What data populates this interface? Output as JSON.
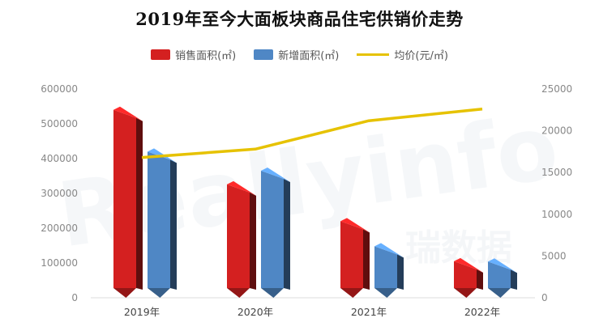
{
  "chart_data": {
    "type": "bar",
    "title": "2019年至今大面板块商品住宅供销价走势",
    "categories": [
      "2019年",
      "2020年",
      "2021年",
      "2022年"
    ],
    "series": [
      {
        "name": "销售面积(㎡)",
        "axis": "left",
        "color": "#d42020",
        "values": [
          540000,
          326000,
          220000,
          105000
        ]
      },
      {
        "name": "新增面积(㎡)",
        "axis": "left",
        "color": "#4f87c5",
        "values": [
          420000,
          365000,
          148000,
          104000
        ]
      },
      {
        "name": "均价(元/㎡)",
        "axis": "right",
        "type": "line",
        "color": "#e6c200",
        "values": [
          16800,
          17800,
          21200,
          22600
        ]
      }
    ],
    "y_left": {
      "range": [
        0,
        600000
      ],
      "ticks": [
        "0",
        "100000",
        "200000",
        "300000",
        "400000",
        "500000",
        "600000"
      ]
    },
    "y_right": {
      "range": [
        0,
        25000
      ],
      "ticks": [
        "0",
        "5000",
        "10000",
        "15000",
        "20000",
        "25000"
      ]
    },
    "legend_position": "top-center",
    "grid": false
  },
  "watermark": {
    "en": "Reallyinfo",
    "cn": "瑞数据"
  }
}
